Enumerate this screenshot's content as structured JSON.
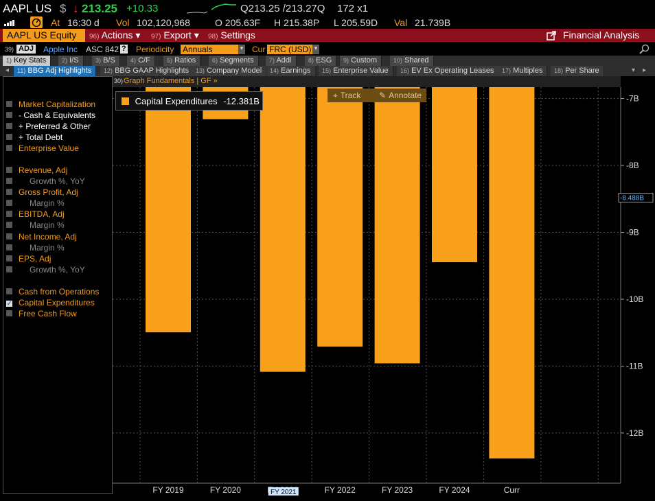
{
  "quote": {
    "ticker": "AAPL US",
    "currency": "$",
    "arrow": "↓",
    "last": "213.25",
    "change": "+10.33",
    "bid_ask": "Q213.25 /213.27Q",
    "size": "172 x1",
    "at_label": "At",
    "time": "16:30 d",
    "vol_label": "Vol",
    "volume": "102,120,968",
    "open": "O 205.63F",
    "high": "H 215.38P",
    "low": "L 205.59D",
    "val_label": "Val",
    "value": "21.739B"
  },
  "function_bar": {
    "security": "AAPL US Equity",
    "actions_num": "96)",
    "actions": "Actions ▾",
    "export_num": "97)",
    "export": "Export ▾",
    "settings_num": "98)",
    "settings": "Settings",
    "title": "Financial Analysis"
  },
  "security_row": {
    "num": "39)",
    "adj": "ADJ",
    "name": "Apple Inc",
    "standard": "ASC 842",
    "help": "?",
    "periodicity_label": "Periodicity",
    "periodicity": "Annuals",
    "cur_label": "Cur",
    "currency": "FRC (USD)"
  },
  "tabs_main": [
    {
      "num": "1)",
      "label": "Key Stats",
      "active": true
    },
    {
      "num": "2)",
      "label": "I/S",
      "active": false
    },
    {
      "num": "3)",
      "label": "B/S",
      "active": false
    },
    {
      "num": "4)",
      "label": "C/F",
      "active": false
    },
    {
      "num": "5)",
      "label": "Ratios",
      "active": false
    },
    {
      "num": "6)",
      "label": "Segments",
      "active": false
    },
    {
      "num": "7)",
      "label": "Addl",
      "active": false
    },
    {
      "num": "8)",
      "label": "ESG",
      "active": false
    },
    {
      "num": "9)",
      "label": "Custom",
      "active": false
    },
    {
      "num": "10)",
      "label": "Shared",
      "active": false
    }
  ],
  "tabs_sub": [
    {
      "num": "11)",
      "label": "BBG Adj Highlights",
      "active": true
    },
    {
      "num": "12)",
      "label": "BBG GAAP Highlights",
      "active": false
    },
    {
      "num": "13)",
      "label": "Company Model",
      "active": false
    },
    {
      "num": "14)",
      "label": "Earnings",
      "active": false
    },
    {
      "num": "15)",
      "label": "Enterprise Value",
      "active": false
    },
    {
      "num": "16)",
      "label": "EV Ex Operating Leases",
      "active": false
    },
    {
      "num": "17)",
      "label": "Multiples",
      "active": false
    },
    {
      "num": "18)",
      "label": "Per Share",
      "active": false
    }
  ],
  "graph_bar": {
    "num": "30)",
    "label": "Graph Fundamentals | GF »"
  },
  "metrics": [
    {
      "label": "Market Capitalization",
      "style": "orange",
      "checked": false
    },
    {
      "label": "- Cash & Equivalents",
      "style": "white",
      "checked": false
    },
    {
      "label": "+ Preferred & Other",
      "style": "white",
      "checked": false
    },
    {
      "label": "+ Total Debt",
      "style": "white",
      "checked": false
    },
    {
      "label": "Enterprise Value",
      "style": "orange",
      "checked": false
    },
    {
      "label": "Revenue, Adj",
      "style": "orange",
      "checked": false
    },
    {
      "label": "Growth %, YoY",
      "style": "grey",
      "checked": false
    },
    {
      "label": "Gross Profit, Adj",
      "style": "orange",
      "checked": false
    },
    {
      "label": "Margin %",
      "style": "grey",
      "checked": false
    },
    {
      "label": "EBITDA, Adj",
      "style": "orange",
      "checked": false
    },
    {
      "label": "Margin %",
      "style": "grey",
      "checked": false
    },
    {
      "label": "Net Income, Adj",
      "style": "orange",
      "checked": false
    },
    {
      "label": "Margin %",
      "style": "grey",
      "checked": false
    },
    {
      "label": "EPS, Adj",
      "style": "orange",
      "checked": false
    },
    {
      "label": "Growth %, YoY",
      "style": "grey",
      "checked": false
    },
    {
      "label": "Cash from Operations",
      "style": "orange",
      "checked": false
    },
    {
      "label": "Capital Expenditures",
      "style": "orange",
      "checked": true
    },
    {
      "label": "Free Cash Flow",
      "style": "orange",
      "checked": false
    }
  ],
  "tools": {
    "track": "Track",
    "annotate": "Annotate",
    "track_icon": "crosshair-icon",
    "annotate_icon": "pencil-icon"
  },
  "legend": {
    "name": "Capital Expenditures",
    "value": "-12.381B"
  },
  "colors": {
    "bar": "#f9a11b",
    "function_bar": "#8b0f1d",
    "tab_active": "#1f6fb4",
    "price_up": "#33d04a"
  },
  "chart_data": {
    "type": "bar",
    "categories": [
      "FY 2019",
      "FY 2020",
      "FY 2021",
      "FY 2022",
      "FY 2023",
      "FY 2024",
      "Curr"
    ],
    "series": [
      {
        "name": "Capital Expenditures",
        "values": [
          -10.495,
          -7.309,
          -11.085,
          -10.708,
          -10.959,
          -9.447,
          -12.381
        ]
      }
    ],
    "ylim": [
      -12.75,
      -6.83
    ],
    "y_ticks": [
      -7,
      -8,
      -9,
      -10,
      -11,
      -12
    ],
    "y_tick_labels": [
      "-7B",
      "-8B",
      "-9B",
      "-10B",
      "-11B",
      "-12B"
    ],
    "hover_value": -8.488,
    "hover_label": "-8.488B",
    "hover_category": "FY 2021",
    "grid": true,
    "legend_position": "top-left"
  }
}
